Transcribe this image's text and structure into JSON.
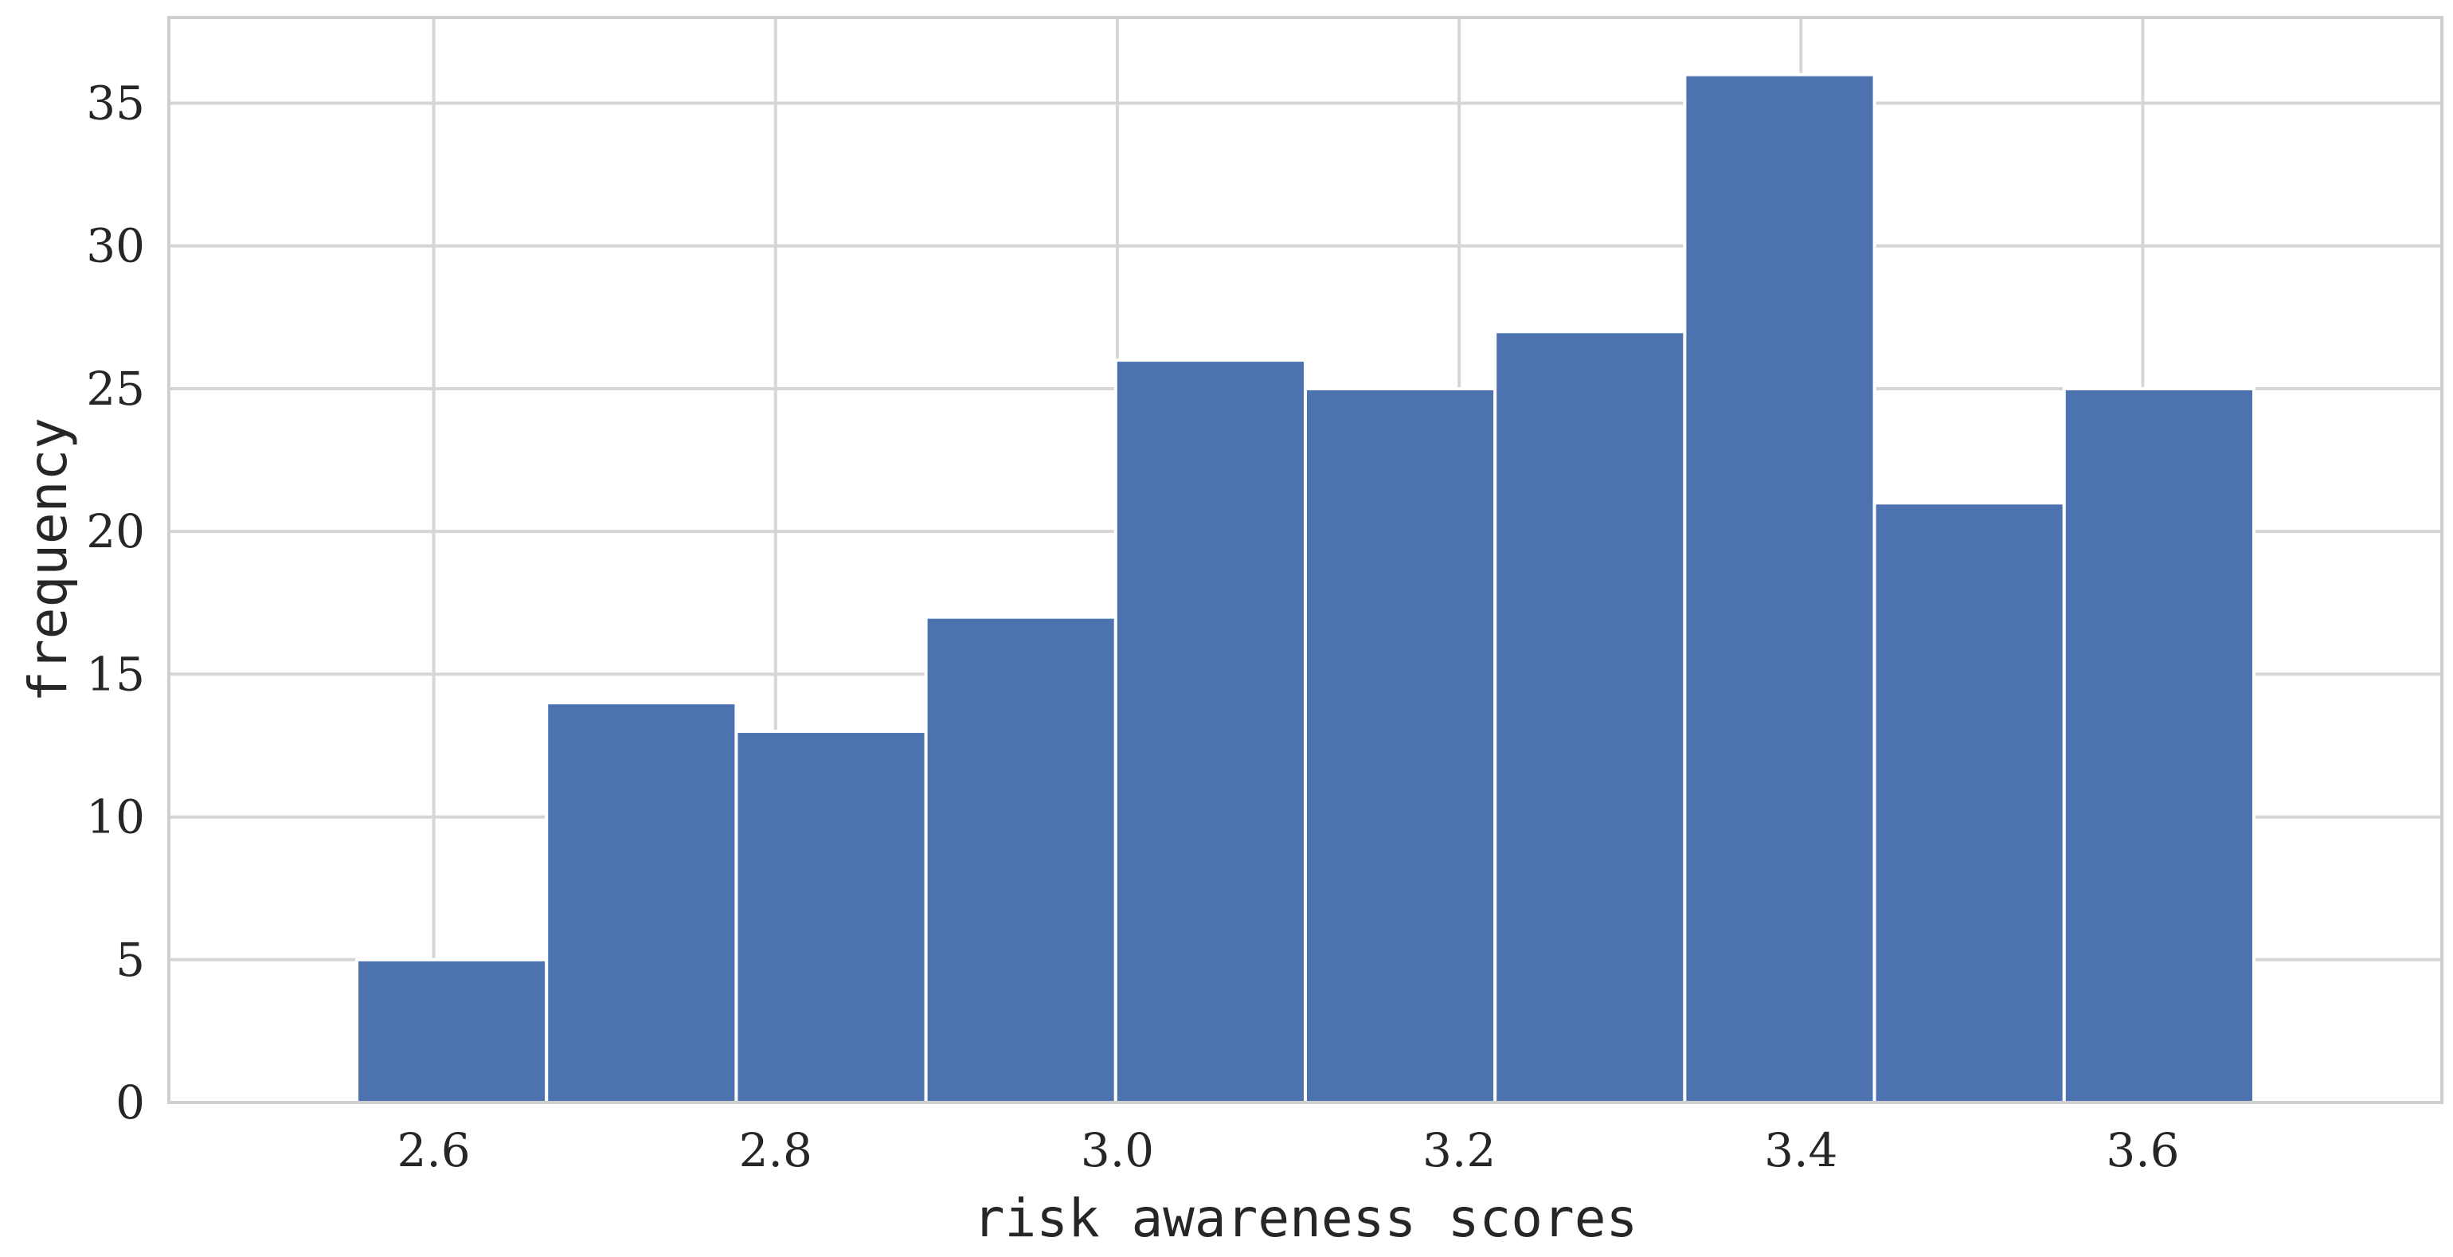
{
  "chart_data": {
    "type": "bar",
    "subtype": "histogram",
    "xlabel": "risk awareness scores",
    "ylabel": "frequency",
    "bin_edges": [
      2.555,
      2.666,
      2.777,
      2.888,
      2.999,
      3.11,
      3.221,
      3.332,
      3.443,
      3.554,
      3.665
    ],
    "values": [
      5,
      14,
      13,
      17,
      26,
      25,
      27,
      36,
      21,
      25
    ],
    "xlim": [
      2.445,
      3.775
    ],
    "ylim": [
      0,
      38
    ],
    "x_ticks": [
      2.6,
      2.8,
      3.0,
      3.2,
      3.4,
      3.6
    ],
    "x_tick_labels": [
      "2.6",
      "2.8",
      "3.0",
      "3.2",
      "3.4",
      "3.6"
    ],
    "y_ticks": [
      0,
      5,
      10,
      15,
      20,
      25,
      30,
      35
    ],
    "y_tick_labels": [
      "0",
      "5",
      "10",
      "15",
      "20",
      "25",
      "30",
      "35"
    ],
    "grid": true,
    "legend": "none",
    "bar_color": "#4c72b0",
    "grid_color": "#d6d6d6",
    "frame_color": "#cfcfcf"
  }
}
